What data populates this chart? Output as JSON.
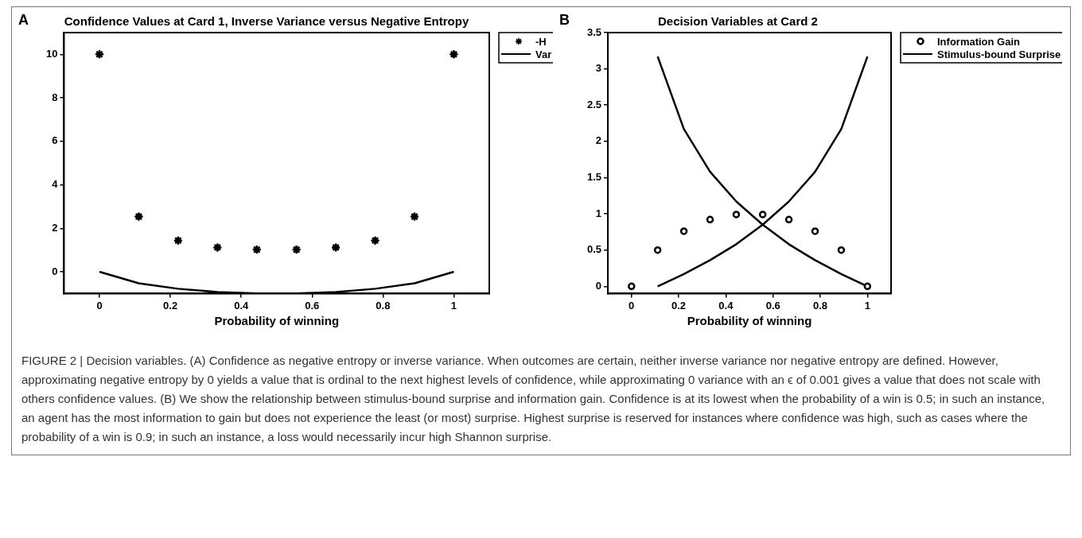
{
  "chart_data": [
    {
      "type": "scatter",
      "title": "Confidence Values at Card 1, Inverse Variance versus Negative Entropy",
      "xlabel": "Probability of winning",
      "annotations": [
        "A",
        "FIGURE 2 | Decision variables. (A) Confidence as negative entropy or inverse variance. When outcomes are certain, neither inverse variance nor negative entropy are defined. However, approximating negative entropy by 0 yields a value that is ordinal to the next highest levels of confidence, while approximating 0 variance with an ϵ of 0.001 gives a value that does not scale with others confidence values. (B) We show the relationship between stimulus-bound surprise and information gain. Confidence is at its lowest when the probability of a win is 0.5; in such an instance, an agent has the most information to gain but does not experience the least (or most) surprise. Highest surprise is reserved for instances where confidence was high, such as cases where the probability of a win is 0.9; in such an instance, a loss would necessarily incur high Shannon surprise."
      ],
      "xlim": [
        -0.1,
        1.1
      ],
      "xticks": [
        0,
        0.2,
        0.4,
        0.6,
        0.8,
        1
      ],
      "ylim": [
        -1,
        11
      ],
      "yticks": [
        0,
        2,
        4,
        6,
        8,
        10
      ],
      "grid": false,
      "legend": "top right",
      "series": [
        {
          "name": "-H",
          "type": "scatter",
          "marker": "star",
          "color": "#000000",
          "x": [
            0,
            0.111,
            0.222,
            0.333,
            0.444,
            0.556,
            0.667,
            0.778,
            0.889,
            1
          ],
          "values": [
            10,
            2.54,
            1.44,
            1.12,
            1.02,
            1.02,
            1.12,
            1.44,
            2.54,
            10
          ]
        },
        {
          "name": "Var",
          "type": "line",
          "marker": "none",
          "color": "#000000",
          "x": [
            0,
            0.111,
            0.222,
            0.333,
            0.444,
            0.556,
            0.667,
            0.778,
            0.889,
            1
          ],
          "values": [
            0,
            -0.53,
            -0.78,
            -0.93,
            -0.99,
            -0.99,
            -0.93,
            -0.78,
            -0.53,
            0
          ]
        }
      ]
    },
    {
      "type": "scatter",
      "title": "Decision Variables at Card 2",
      "xlabel": "Probability of winning",
      "annotations": [
        "B"
      ],
      "xlim": [
        -0.1,
        1.1
      ],
      "xticks": [
        0,
        0.2,
        0.4,
        0.6,
        0.8,
        1
      ],
      "ylim": [
        -0.1,
        3.5
      ],
      "yticks": [
        0,
        0.5,
        1,
        1.5,
        2,
        2.5,
        3,
        3.5
      ],
      "grid": false,
      "legend": "top right",
      "series": [
        {
          "name": "Information Gain",
          "type": "scatter",
          "marker": "circle",
          "color": "#000000",
          "x": [
            0,
            0.111,
            0.222,
            0.333,
            0.444,
            0.556,
            0.667,
            0.778,
            0.889,
            1
          ],
          "values": [
            0,
            0.5,
            0.76,
            0.92,
            0.99,
            0.99,
            0.92,
            0.76,
            0.5,
            0
          ]
        },
        {
          "name": "Stimulus-bound Surprise",
          "type": "line",
          "marker": "none",
          "color": "#000000",
          "x": [
            0.111,
            0.222,
            0.333,
            0.444,
            0.556,
            0.667,
            0.778,
            0.889,
            1
          ],
          "values": [
            3.17,
            2.17,
            1.58,
            1.17,
            0.85,
            0.58,
            0.36,
            0.17,
            0
          ]
        },
        {
          "type": "line",
          "marker": "none",
          "color": "#000000",
          "x": [
            0.111,
            0.222,
            0.333,
            0.444,
            0.556,
            0.667,
            0.778,
            0.889,
            1
          ],
          "values": [
            0,
            0.17,
            0.36,
            0.58,
            0.85,
            1.17,
            1.58,
            2.17,
            3.17
          ]
        }
      ]
    }
  ]
}
